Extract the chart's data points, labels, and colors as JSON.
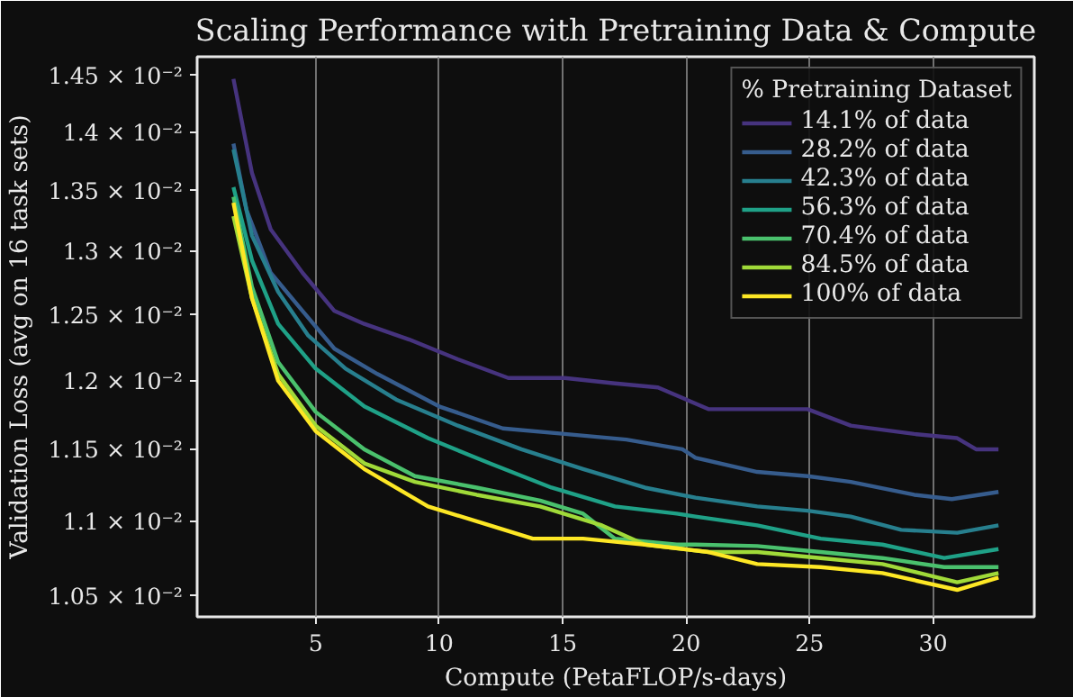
{
  "chart_data": {
    "type": "line",
    "title": "Scaling Performance with Pretraining Data & Compute",
    "xlabel": "Compute (PetaFLOP/s-days)",
    "ylabel": "Validation Loss (avg on 16 task sets)",
    "legend_title": "% Pretraining Dataset",
    "log": "y",
    "grid": "x",
    "legend": "top right",
    "xlim": [
      0.2,
      34.1
    ],
    "xticks": [
      5,
      10,
      15,
      20,
      25,
      30
    ],
    "ylim": [
      0.010365,
      0.01467
    ],
    "yticks": [
      {
        "value": 0.0105,
        "label": "1.05 × 10⁻²"
      },
      {
        "value": 0.011,
        "label": "1.1 × 10⁻²"
      },
      {
        "value": 0.0115,
        "label": "1.15 × 10⁻²"
      },
      {
        "value": 0.012,
        "label": "1.2 × 10⁻²"
      },
      {
        "value": 0.0125,
        "label": "1.25 × 10⁻²"
      },
      {
        "value": 0.013,
        "label": "1.3 × 10⁻²"
      },
      {
        "value": 0.0135,
        "label": "1.35 × 10⁻²"
      },
      {
        "value": 0.014,
        "label": "1.4 × 10⁻²"
      },
      {
        "value": 0.0145,
        "label": "1.45 × 10⁻²"
      }
    ],
    "series": [
      {
        "name": "14.1% of data",
        "color": "#46337e",
        "x": [
          1.67,
          2.42,
          3.18,
          4.47,
          5.76,
          6.97,
          8.79,
          10.76,
          12.8,
          15.08,
          17.12,
          18.86,
          20.9,
          22.42,
          24.92,
          26.67,
          29.24,
          30.98,
          31.74,
          32.65
        ],
        "values": [
          0.01447,
          0.01365,
          0.01318,
          0.01283,
          0.01253,
          0.01243,
          0.01231,
          0.01216,
          0.01202,
          0.01202,
          0.01198,
          0.01195,
          0.01179,
          0.01179,
          0.01179,
          0.01167,
          0.01161,
          0.01158,
          0.0115,
          0.0115
        ]
      },
      {
        "name": "28.2% of data",
        "color": "#365c8d",
        "x": [
          1.67,
          2.2,
          3.18,
          4.47,
          5.76,
          7.5,
          10,
          12.58,
          15.08,
          17.58,
          19.85,
          20.38,
          22.88,
          24.92,
          26.67,
          29.24,
          30.76,
          32.65
        ],
        "values": [
          0.0139,
          0.01334,
          0.01283,
          0.01253,
          0.01224,
          0.01205,
          0.01181,
          0.01165,
          0.01161,
          0.01157,
          0.0115,
          0.01144,
          0.01134,
          0.01131,
          0.01127,
          0.01118,
          0.01115,
          0.0112
        ]
      },
      {
        "name": "42.3% of data",
        "color": "#277f8e",
        "x": [
          1.67,
          2.42,
          3.48,
          4.7,
          6.21,
          8.26,
          10.76,
          13.33,
          15.83,
          18.33,
          20.38,
          22.88,
          24.92,
          26.67,
          28.71,
          30.98,
          32.65
        ],
        "values": [
          0.01385,
          0.01313,
          0.01268,
          0.01234,
          0.01209,
          0.01186,
          0.01167,
          0.0115,
          0.01136,
          0.01123,
          0.01116,
          0.0111,
          0.01107,
          0.01103,
          0.01094,
          0.01092,
          0.01097
        ]
      },
      {
        "name": "56.3% of data",
        "color": "#1fa187",
        "x": [
          1.67,
          2.42,
          3.48,
          5,
          6.97,
          9.55,
          12.05,
          14.55,
          17.12,
          19.62,
          20.38,
          22.88,
          25.45,
          27.95,
          30.45,
          32.65
        ],
        "values": [
          0.01353,
          0.01293,
          0.01243,
          0.01209,
          0.01181,
          0.01158,
          0.0114,
          0.01123,
          0.0111,
          0.01105,
          0.01103,
          0.01097,
          0.01088,
          0.01084,
          0.01075,
          0.01081
        ]
      },
      {
        "name": "70.4% of data",
        "color": "#4ac16d",
        "x": [
          1.67,
          2.42,
          3.48,
          5,
          6.97,
          9.02,
          11.52,
          14.09,
          15.83,
          17.12,
          19.62,
          20.38,
          22.88,
          25.45,
          27.95,
          30.45,
          32.65
        ],
        "values": [
          0.01345,
          0.01272,
          0.01214,
          0.01177,
          0.0115,
          0.01131,
          0.01123,
          0.01114,
          0.01105,
          0.01088,
          0.01084,
          0.01084,
          0.01083,
          0.01079,
          0.01075,
          0.01069,
          0.01069
        ]
      },
      {
        "name": "84.5% of data",
        "color": "#a0da39",
        "x": [
          1.67,
          2.42,
          3.48,
          5,
          6.97,
          9.02,
          11.52,
          14.09,
          16.59,
          18.33,
          20.91,
          22.88,
          25.45,
          27.95,
          30.98,
          32.65
        ],
        "values": [
          0.01329,
          0.01263,
          0.01205,
          0.01167,
          0.0114,
          0.01127,
          0.01118,
          0.0111,
          0.01097,
          0.01084,
          0.01079,
          0.01079,
          0.01075,
          0.01071,
          0.01059,
          0.01065
        ]
      },
      {
        "name": "100% of data",
        "color": "#fde725",
        "x": [
          1.67,
          2.42,
          3.48,
          5,
          6.97,
          9.55,
          12.05,
          13.79,
          15.83,
          18.33,
          20.91,
          22.88,
          25.45,
          27.95,
          30.98,
          32.65
        ],
        "values": [
          0.0134,
          0.01263,
          0.012,
          0.01163,
          0.01136,
          0.0111,
          0.01097,
          0.01088,
          0.01088,
          0.01084,
          0.01079,
          0.01071,
          0.01069,
          0.01065,
          0.01054,
          0.01062
        ]
      }
    ]
  }
}
